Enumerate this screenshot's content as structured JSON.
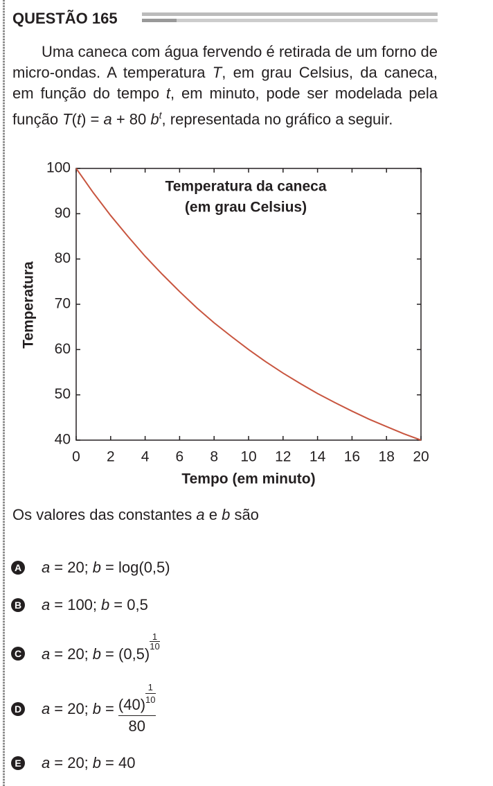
{
  "header": {
    "title": "QUESTÃO 165"
  },
  "statement": [
    "Uma caneca com água fervendo é retirada de um forno de micro-ondas. A temperatura ",
    "T",
    ", em grau Celsius, da caneca, em função do tempo ",
    "t",
    ", em minuto, pode ser modelada pela função ",
    "T",
    "(",
    "t",
    ") = ",
    "a",
    " + 80 ",
    "b",
    "t",
    ", representada no gráfico a seguir."
  ],
  "chart_data": {
    "type": "line",
    "title": "Temperatura da caneca",
    "subtitle": "(em grau Celsius)",
    "x_label": "Tempo (em minuto)",
    "y_label": "Temperatura",
    "x": [
      0,
      1,
      2,
      3,
      4,
      5,
      6,
      7,
      8,
      9,
      10,
      11,
      12,
      13,
      14,
      15,
      16,
      17,
      18,
      19,
      20
    ],
    "values": [
      100,
      94.6,
      89.6,
      85.0,
      80.6,
      76.6,
      72.8,
      69.2,
      65.9,
      62.9,
      60,
      57.3,
      54.8,
      52.5,
      50.3,
      48.3,
      46.4,
      44.6,
      43.0,
      41.4,
      40
    ],
    "color": "#c8553f",
    "xlim": [
      0,
      20
    ],
    "ylim": [
      40,
      100
    ],
    "xticks": [
      0,
      2,
      4,
      6,
      8,
      10,
      12,
      14,
      16,
      18,
      20
    ],
    "yticks": [
      40,
      50,
      60,
      70,
      80,
      90,
      100
    ]
  },
  "question": [
    "Os valores das constantes ",
    "a",
    " e ",
    "b",
    " são"
  ],
  "options": [
    {
      "letter": "A",
      "expr": [
        "a",
        "= 20;",
        "b",
        "= log(0,5)"
      ]
    },
    {
      "letter": "B",
      "expr": [
        "a",
        "= 100;",
        "b",
        "= 0,5"
      ]
    },
    {
      "letter": "C",
      "expr": [
        "a",
        "= 20;",
        "b",
        "= (0,5)"
      ],
      "exponent": [
        "1",
        "10"
      ]
    },
    {
      "letter": "D",
      "expr": [
        "a",
        "= 20;",
        "b",
        "="
      ],
      "numerator": "(40)",
      "exponent": [
        "1",
        "10"
      ],
      "denominator": "80"
    },
    {
      "letter": "E",
      "expr": [
        "a",
        "= 20;",
        "b",
        "= 40"
      ]
    }
  ]
}
